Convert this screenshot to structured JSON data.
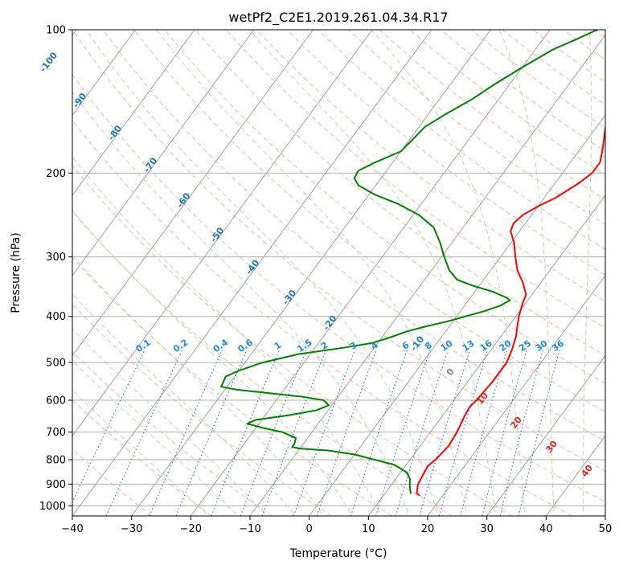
{
  "chart_data": {
    "type": "line",
    "subtype": "skew-t log-p diagram",
    "title": "wetPf2_C2E1.2019.261.04.34.R17",
    "xlabel": "Temperature (°C)",
    "ylabel": "Pressure (hPa)",
    "xlim": [
      -40,
      50
    ],
    "ylim": [
      1050,
      100
    ],
    "y_scale": "log",
    "x_ticks": [
      -40,
      -30,
      -20,
      -10,
      0,
      10,
      20,
      30,
      40,
      50
    ],
    "y_ticks": [
      100,
      200,
      300,
      400,
      500,
      600,
      700,
      800,
      900,
      1000
    ],
    "grid": true,
    "colors": {
      "temperature": "#ff0000",
      "dewpoint": "#008000",
      "isotherm": "#999999",
      "dry_adiabat": "#f4a582",
      "moist_adiabat": "#a6d8a0",
      "mixing_ratio": "#1f77d4",
      "isotherm_label": "#1f77b4",
      "red_label": "#d62728",
      "zero_label": "#808080",
      "mixing_label": "#1e88e5"
    },
    "series": [
      {
        "key": "temperature",
        "points": [
          {
            "p": 950,
            "t": 16.0
          },
          {
            "p": 940,
            "t": 15.3
          },
          {
            "p": 900,
            "t": 14.4
          },
          {
            "p": 850,
            "t": 14.0
          },
          {
            "p": 825,
            "t": 13.8
          },
          {
            "p": 800,
            "t": 14.3
          },
          {
            "p": 750,
            "t": 14.8
          },
          {
            "p": 700,
            "t": 14.5
          },
          {
            "p": 650,
            "t": 13.8
          },
          {
            "p": 620,
            "t": 13.5
          },
          {
            "p": 600,
            "t": 13.8
          },
          {
            "p": 550,
            "t": 14.2
          },
          {
            "p": 500,
            "t": 14.2
          },
          {
            "p": 470,
            "t": 13.5
          },
          {
            "p": 440,
            "t": 12.5
          },
          {
            "p": 420,
            "t": 11.5
          },
          {
            "p": 400,
            "t": 10.5
          },
          {
            "p": 375,
            "t": 9.5
          },
          {
            "p": 360,
            "t": 9.0
          },
          {
            "p": 340,
            "t": 7.0
          },
          {
            "p": 320,
            "t": 4.5
          },
          {
            "p": 300,
            "t": 2.5
          },
          {
            "p": 280,
            "t": 0.5
          },
          {
            "p": 265,
            "t": -1.5
          },
          {
            "p": 255,
            "t": -2.0
          },
          {
            "p": 245,
            "t": -1.5
          },
          {
            "p": 235,
            "t": 0.0
          },
          {
            "p": 225,
            "t": 2.0
          },
          {
            "p": 210,
            "t": 4.0
          },
          {
            "p": 200,
            "t": 5.0
          },
          {
            "p": 190,
            "t": 5.0
          },
          {
            "p": 180,
            "t": 4.0
          },
          {
            "p": 170,
            "t": 2.8
          },
          {
            "p": 160,
            "t": 1.5
          },
          {
            "p": 150,
            "t": 0.3
          },
          {
            "p": 140,
            "t": -0.2
          },
          {
            "p": 130,
            "t": 0.2
          },
          {
            "p": 120,
            "t": 1.0
          },
          {
            "p": 112,
            "t": 2.0
          },
          {
            "p": 105,
            "t": 2.2
          },
          {
            "p": 100,
            "t": 2.8
          }
        ]
      },
      {
        "key": "dewpoint",
        "points": [
          {
            "p": 940,
            "t": 14.3
          },
          {
            "p": 920,
            "t": 13.6
          },
          {
            "p": 900,
            "t": 13.0
          },
          {
            "p": 880,
            "t": 12.5
          },
          {
            "p": 850,
            "t": 11.0
          },
          {
            "p": 820,
            "t": 8.0
          },
          {
            "p": 800,
            "t": 4.0
          },
          {
            "p": 780,
            "t": 0.0
          },
          {
            "p": 765,
            "t": -5.0
          },
          {
            "p": 758,
            "t": -10.0
          },
          {
            "p": 752,
            "t": -11.5
          },
          {
            "p": 740,
            "t": -11.5
          },
          {
            "p": 720,
            "t": -12.0
          },
          {
            "p": 700,
            "t": -15.0
          },
          {
            "p": 685,
            "t": -19.0
          },
          {
            "p": 672,
            "t": -22.0
          },
          {
            "p": 660,
            "t": -21.0
          },
          {
            "p": 645,
            "t": -16.0
          },
          {
            "p": 630,
            "t": -12.0
          },
          {
            "p": 615,
            "t": -10.5
          },
          {
            "p": 600,
            "t": -12.0
          },
          {
            "p": 590,
            "t": -16.0
          },
          {
            "p": 580,
            "t": -22.0
          },
          {
            "p": 570,
            "t": -28.0
          },
          {
            "p": 562,
            "t": -31.0
          },
          {
            "p": 550,
            "t": -31.2
          },
          {
            "p": 535,
            "t": -31.5
          },
          {
            "p": 520,
            "t": -30.0
          },
          {
            "p": 500,
            "t": -27.0
          },
          {
            "p": 480,
            "t": -22.0
          },
          {
            "p": 465,
            "t": -15.0
          },
          {
            "p": 455,
            "t": -11.0
          },
          {
            "p": 445,
            "t": -9.0
          },
          {
            "p": 430,
            "t": -6.5
          },
          {
            "p": 420,
            "t": -4.0
          },
          {
            "p": 410,
            "t": -1.0
          },
          {
            "p": 400,
            "t": 1.5
          },
          {
            "p": 390,
            "t": 4.0
          },
          {
            "p": 380,
            "t": 6.0
          },
          {
            "p": 370,
            "t": 7.0
          },
          {
            "p": 365,
            "t": 6.0
          },
          {
            "p": 355,
            "t": 3.0
          },
          {
            "p": 345,
            "t": -1.0
          },
          {
            "p": 335,
            "t": -4.5
          },
          {
            "p": 320,
            "t": -7.0
          },
          {
            "p": 300,
            "t": -9.5
          },
          {
            "p": 280,
            "t": -12.0
          },
          {
            "p": 260,
            "t": -15.0
          },
          {
            "p": 245,
            "t": -19.0
          },
          {
            "p": 232,
            "t": -24.0
          },
          {
            "p": 222,
            "t": -29.0
          },
          {
            "p": 212,
            "t": -33.0
          },
          {
            "p": 205,
            "t": -34.5
          },
          {
            "p": 198,
            "t": -34.8
          },
          {
            "p": 190,
            "t": -33.0
          },
          {
            "p": 180,
            "t": -30.0
          },
          {
            "p": 170,
            "t": -29.5
          },
          {
            "p": 160,
            "t": -29.0
          },
          {
            "p": 150,
            "t": -27.0
          },
          {
            "p": 140,
            "t": -24.5
          },
          {
            "p": 130,
            "t": -22.5
          },
          {
            "p": 120,
            "t": -20.0
          },
          {
            "p": 110,
            "t": -17.0
          },
          {
            "p": 105,
            "t": -14.5
          },
          {
            "p": 100,
            "t": -12.0
          }
        ]
      }
    ],
    "isotherm_labels": [
      "-100",
      "-90",
      "-80",
      "-70",
      "-60",
      "-50",
      "-40",
      "-30",
      "-20",
      "-10"
    ],
    "red_labels": [
      "0",
      "10",
      "20",
      "30",
      "40"
    ],
    "mixing_ratio_labels": [
      "0.1",
      "0.2",
      "0.4",
      "0.6",
      "1",
      "1.5",
      "2",
      "3",
      "4",
      "6",
      "8",
      "10",
      "13",
      "16",
      "20",
      "25",
      "30",
      "36"
    ]
  }
}
